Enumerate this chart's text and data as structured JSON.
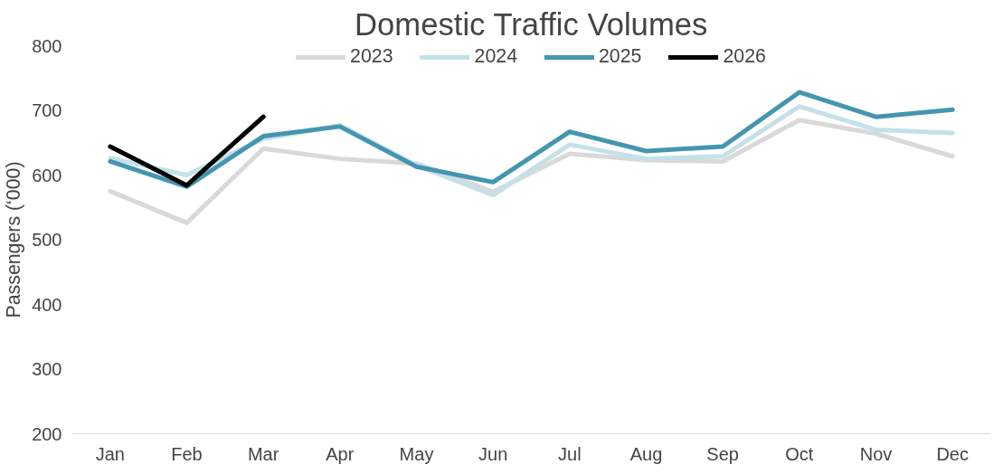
{
  "chart_data": {
    "type": "line",
    "title": "Domestic Traffic Volumes",
    "ylabel": "Passengers (‘000)",
    "categories": [
      "Jan",
      "Feb",
      "Mar",
      "Apr",
      "May",
      "Jun",
      "Jul",
      "Aug",
      "Sep",
      "Oct",
      "Nov",
      "Dec"
    ],
    "series": [
      {
        "name": "2023",
        "color": "#d9d9d9",
        "values": [
          575,
          526,
          641,
          625,
          618,
          574,
          633,
          623,
          621,
          685,
          664,
          629
        ]
      },
      {
        "name": "2024",
        "color": "#c5e0e8",
        "values": [
          626,
          600,
          656,
          677,
          615,
          569,
          647,
          625,
          629,
          706,
          670,
          665
        ]
      },
      {
        "name": "2025",
        "color": "#4496b0",
        "values": [
          621,
          582,
          660,
          675,
          613,
          589,
          667,
          637,
          644,
          728,
          690,
          701
        ]
      },
      {
        "name": "2026",
        "color": "#000000",
        "values": [
          644,
          584,
          690,
          null,
          null,
          null,
          null,
          null,
          null,
          null,
          null,
          null
        ]
      }
    ],
    "ylim": [
      200,
      800
    ],
    "yticks": [
      200,
      300,
      400,
      500,
      600,
      700,
      800
    ],
    "grid": false,
    "legend": "top",
    "marker": "none",
    "line_style": "solid"
  }
}
